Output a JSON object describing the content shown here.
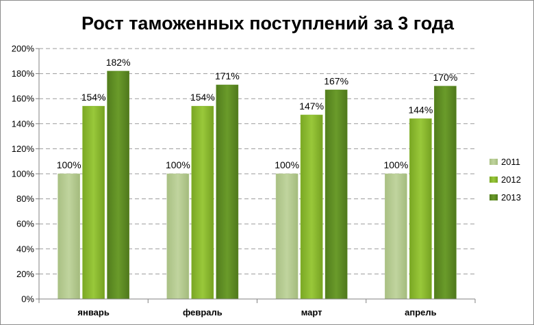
{
  "chart_data": {
    "type": "bar",
    "title": "Рост таможенных поступлений за 3 года",
    "categories": [
      "январь",
      "февраль",
      "март",
      "апрель"
    ],
    "series": [
      {
        "name": "2011",
        "values": [
          100,
          100,
          100,
          100
        ],
        "labels": [
          "100%",
          "100%",
          "100%",
          "100%"
        ],
        "color": "#b3c98e"
      },
      {
        "name": "2012",
        "values": [
          154,
          154,
          147,
          144
        ],
        "labels": [
          "154%",
          "154%",
          "147%",
          "144%"
        ],
        "color": "#86b52a"
      },
      {
        "name": "2013",
        "values": [
          182,
          171,
          167,
          170
        ],
        "labels": [
          "182%",
          "171%",
          "167%",
          "170%"
        ],
        "color": "#5c8b22"
      }
    ],
    "ylim": [
      0,
      200
    ],
    "yticks": [
      "0%",
      "20%",
      "40%",
      "60%",
      "80%",
      "100%",
      "120%",
      "140%",
      "160%",
      "180%",
      "200%"
    ],
    "grid": true,
    "legend_position": "right"
  }
}
